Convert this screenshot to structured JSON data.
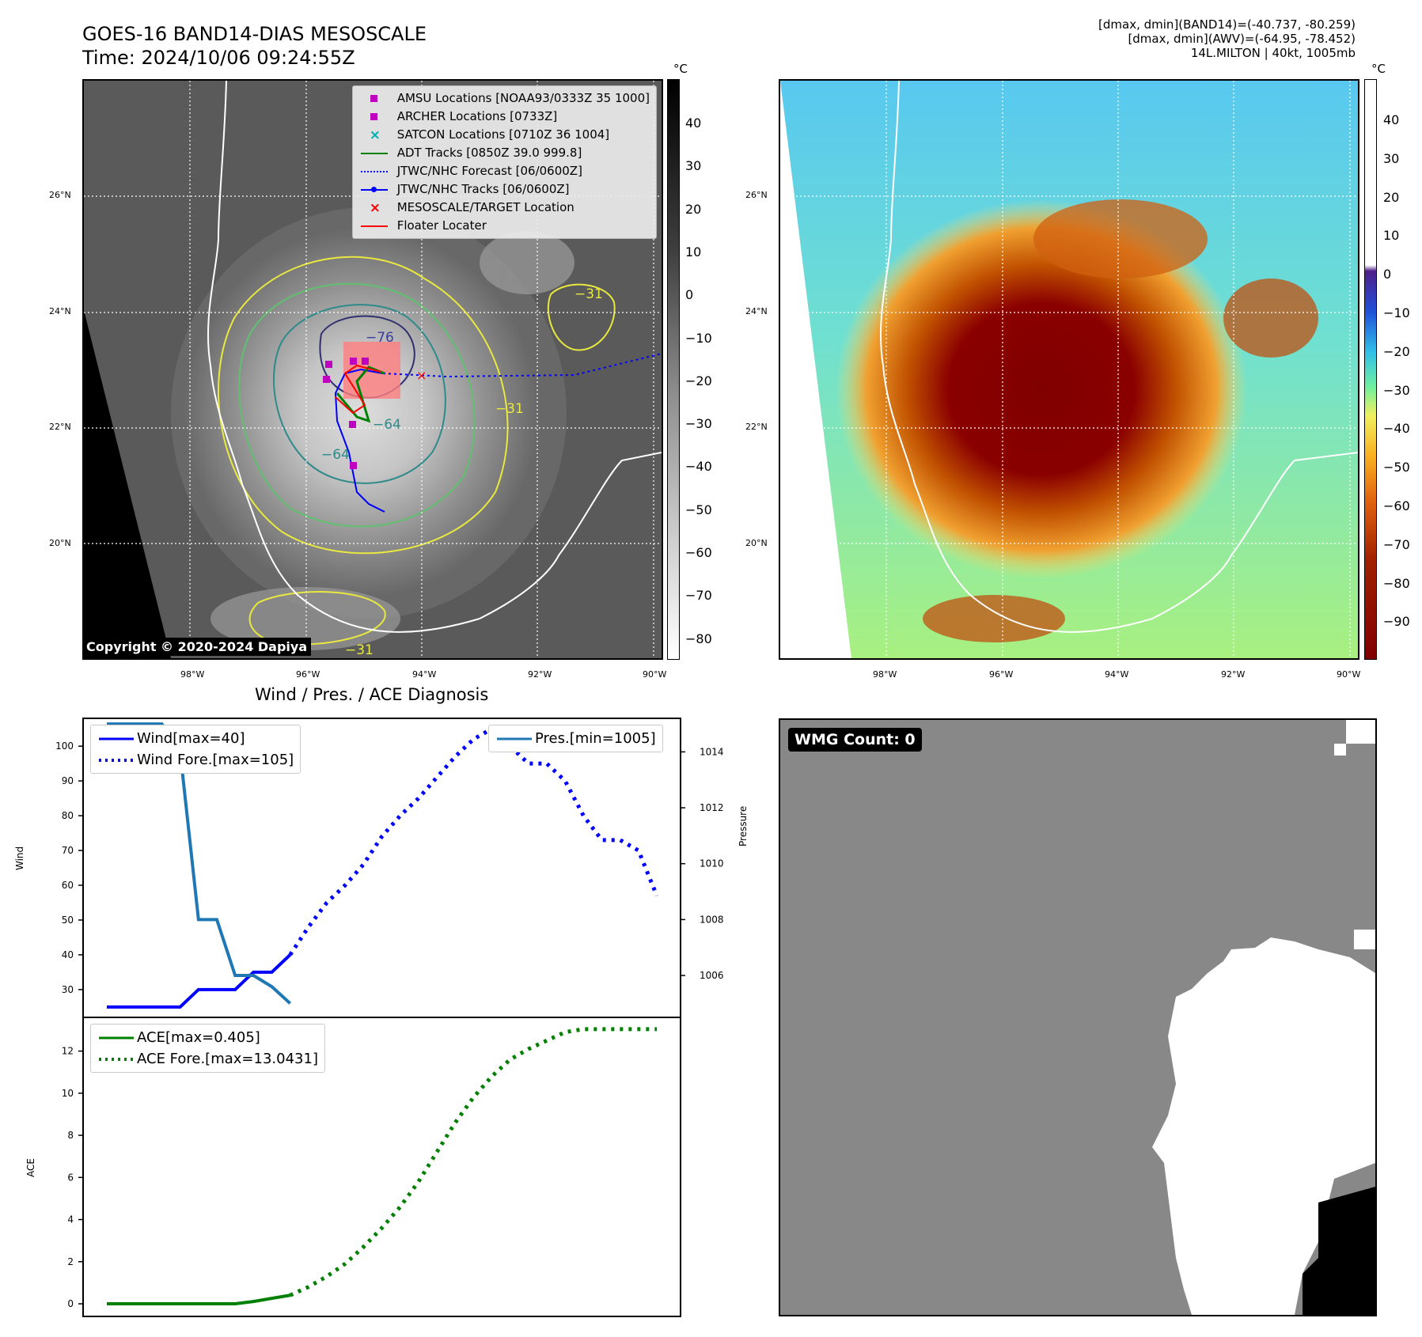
{
  "header": {
    "title_line1": "GOES-16 BAND14-DIAS MESOSCALE",
    "title_line2": "Time: 2024/10/06 09:24:55Z",
    "meta_line1": "[dmax, dmin](BAND14)=(-40.737, -80.259)",
    "meta_line2": "[dmax, dmin](AWV)=(-64.95, -78.452)",
    "meta_line3": "14L.MILTON | 40kt, 1005mb"
  },
  "ir_map": {
    "lat_ticks": [
      "26°N",
      "24°N",
      "22°N",
      "20°N"
    ],
    "lon_ticks": [
      "98°W",
      "96°W",
      "94°W",
      "92°W",
      "90°W"
    ],
    "colorbar_unit": "°C",
    "colorbar_ticks": [
      "40",
      "30",
      "20",
      "10",
      "0",
      "−10",
      "−20",
      "−30",
      "−40",
      "−50",
      "−60",
      "−70",
      "−80"
    ],
    "contour_labels": [
      "−76",
      "−64",
      "−64",
      "−31",
      "−31",
      "−31"
    ],
    "copyright": "Copyright © 2020-2024 Dapiya",
    "legend": [
      {
        "label": "AMSU Locations [NOAA93/0333Z 35 1000]",
        "symbol": "square",
        "color": "#c000c0"
      },
      {
        "label": "ARCHER Locations [0733Z]",
        "symbol": "square",
        "color": "#c000c0"
      },
      {
        "label": "SATCON Locations [0710Z 36 1004]",
        "symbol": "x",
        "color": "#00b0b0"
      },
      {
        "label": "ADT Tracks [0850Z 39.0 999.8]",
        "symbol": "line",
        "color": "#008000"
      },
      {
        "label": "JTWC/NHC Forecast [06/0600Z]",
        "symbol": "dotted",
        "color": "#0000ff"
      },
      {
        "label": "JTWC/NHC Tracks [06/0600Z]",
        "symbol": "line-dot",
        "color": "#0000ff"
      },
      {
        "label": "MESOSCALE/TARGET Location",
        "symbol": "x",
        "color": "#ff0000"
      },
      {
        "label": "Floater Locater",
        "symbol": "line",
        "color": "#ff0000"
      }
    ]
  },
  "awv_map": {
    "lat_ticks": [
      "26°N",
      "24°N",
      "22°N",
      "20°N"
    ],
    "lon_ticks": [
      "98°W",
      "96°W",
      "94°W",
      "92°W",
      "90°W"
    ],
    "colorbar_unit": "°C",
    "colorbar_ticks": [
      "40",
      "30",
      "20",
      "10",
      "0",
      "−10",
      "−20",
      "−30",
      "−40",
      "−50",
      "−60",
      "−70",
      "−80",
      "−90"
    ]
  },
  "wmg": {
    "label": "WMG Count: 0"
  },
  "chart_data": [
    {
      "type": "line",
      "title": "Wind / Pres. / ACE Diagnosis",
      "ylabel": "Wind",
      "y2label": "Pressure",
      "ylim": [
        22,
        108
      ],
      "y2lim": [
        1004.5,
        1015.2
      ],
      "yticks": [
        30,
        40,
        50,
        60,
        70,
        80,
        90,
        100
      ],
      "y2ticks": [
        1006,
        1008,
        1010,
        1012,
        1014
      ],
      "x": [
        0,
        1,
        2,
        3,
        4,
        5,
        6,
        7,
        8,
        9,
        10,
        11,
        12,
        13,
        14,
        15,
        16,
        17,
        18,
        19,
        20,
        21,
        22,
        23,
        24,
        25,
        26,
        27,
        28,
        29,
        30
      ],
      "series": [
        {
          "name": "Wind[max=40]",
          "style": "solid",
          "color": "#0000ff",
          "x": [
            0,
            1,
            2,
            3,
            4,
            5,
            6,
            7,
            8,
            9,
            10
          ],
          "values": [
            25,
            25,
            25,
            25,
            25,
            30,
            30,
            30,
            35,
            35,
            40
          ]
        },
        {
          "name": "Wind Fore.[max=105]",
          "style": "dotted",
          "color": "#0000ff",
          "x": [
            10,
            11,
            12,
            13,
            14,
            15,
            16,
            17,
            18,
            19,
            20,
            21,
            22,
            23,
            24,
            25,
            26,
            27,
            28,
            29,
            30
          ],
          "values": [
            40,
            48,
            55,
            60,
            66,
            74,
            80,
            85,
            91,
            97,
            102,
            105,
            100,
            95,
            95,
            90,
            80,
            73,
            73,
            70,
            57
          ]
        },
        {
          "name": "Pres.[min=1005]",
          "style": "solid",
          "color": "#1f77b4",
          "axis": "right",
          "x": [
            0,
            1,
            2,
            3,
            4,
            5,
            6,
            7,
            8,
            9,
            10
          ],
          "values": [
            1015,
            1015,
            1015,
            1015,
            1014,
            1008,
            1008,
            1006,
            1006,
            1005.6,
            1005
          ]
        }
      ]
    },
    {
      "type": "line",
      "ylabel": "ACE",
      "ylim": [
        -0.6,
        13.6
      ],
      "yticks": [
        0,
        2,
        4,
        6,
        8,
        10,
        12
      ],
      "x": [
        0,
        1,
        2,
        3,
        4,
        5,
        6,
        7,
        8,
        9,
        10,
        11,
        12,
        13,
        14,
        15,
        16,
        17,
        18,
        19,
        20,
        21,
        22,
        23,
        24,
        25,
        26,
        27,
        28,
        29,
        30
      ],
      "series": [
        {
          "name": "ACE[max=0.405]",
          "style": "solid",
          "color": "#008000",
          "x": [
            0,
            1,
            2,
            3,
            4,
            5,
            6,
            7,
            8,
            9,
            10
          ],
          "values": [
            0,
            0,
            0,
            0,
            0,
            0,
            0,
            0,
            0.11,
            0.26,
            0.405
          ]
        },
        {
          "name": "ACE Fore.[max=13.0431]",
          "style": "dotted",
          "color": "#008000",
          "x": [
            10,
            11,
            12,
            13,
            14,
            15,
            16,
            17,
            18,
            19,
            20,
            21,
            22,
            23,
            24,
            25,
            26,
            27,
            28,
            29,
            30
          ],
          "values": [
            0.405,
            0.8,
            1.3,
            1.9,
            2.7,
            3.6,
            4.6,
            5.8,
            7.2,
            8.6,
            9.8,
            10.8,
            11.6,
            12.1,
            12.5,
            12.9,
            13.0431,
            13.0431,
            13.0431,
            13.0431,
            13.0431
          ]
        }
      ]
    }
  ]
}
